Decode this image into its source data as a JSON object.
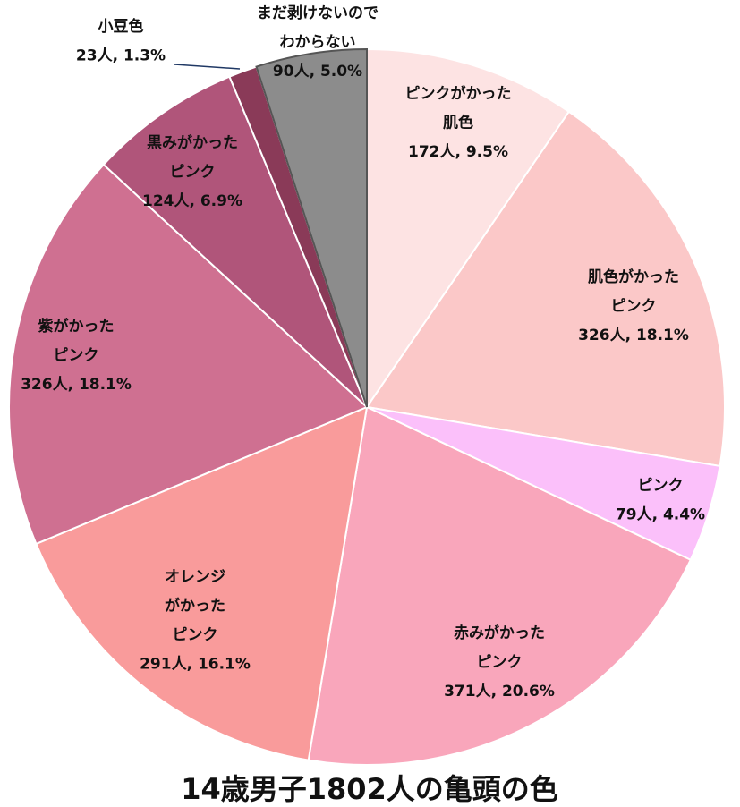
{
  "chart_data": {
    "type": "pie",
    "title": "14歳男子1802人の亀頭の色",
    "categories": [
      [
        "ピンクがかった",
        "肌色"
      ],
      [
        "肌色がかった",
        "ピンク"
      ],
      [
        "ピンク"
      ],
      [
        "赤みがかった",
        "ピンク"
      ],
      [
        "オレンジ",
        "がかった",
        "ピンク"
      ],
      [
        "紫がかった",
        "ピンク"
      ],
      [
        "黒みがかった",
        "ピンク"
      ],
      [
        "小豆色"
      ],
      [
        "まだ剥けないので",
        "わからない"
      ]
    ],
    "values": [
      172,
      326,
      79,
      371,
      291,
      326,
      124,
      23,
      90
    ],
    "value_labels": [
      "172人, 9.5%",
      "326人, 18.1%",
      "79人, 4.4%",
      "371人, 20.6%",
      "291人, 16.1%",
      "326人, 18.1%",
      "124人, 6.9%",
      "23人, 1.3%",
      "90人, 5.0%"
    ],
    "colors": [
      "#fde3e3",
      "#fbc8c8",
      "#fbc0fa",
      "#f9a6bb",
      "#f99b9b",
      "#cf7091",
      "#b0557a",
      "#8a3a58",
      "#8c8c8c"
    ]
  }
}
